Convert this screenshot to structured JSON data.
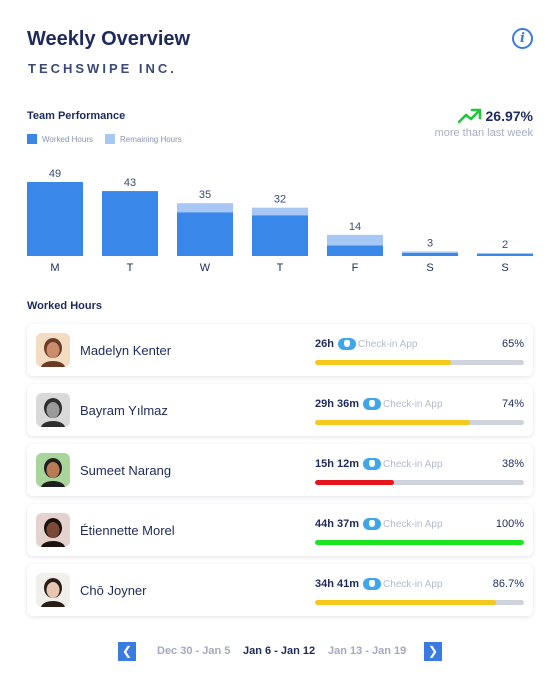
{
  "header": {
    "title": "Weekly Overview",
    "company": "TECHSWIPE INC.",
    "info_icon": "info-icon"
  },
  "team_performance": {
    "title": "Team Performance",
    "legend": {
      "worked": "Worked Hours",
      "remaining": "Remaining Hours"
    },
    "trend": {
      "value": "26.97%",
      "caption": "more than last week",
      "color": "#1ec63c"
    },
    "colors": {
      "worked": "#3a87ea",
      "remaining": "#a7c7f5"
    }
  },
  "chart_data": {
    "type": "bar",
    "categories": [
      "M",
      "T",
      "W",
      "T",
      "F",
      "S",
      "S"
    ],
    "series": [
      {
        "name": "Worked Hours",
        "values": [
          49,
          43,
          29,
          27,
          7,
          2,
          1.5
        ]
      },
      {
        "name": "Remaining Hours",
        "values": [
          0,
          0,
          6,
          5,
          7,
          1,
          0.5
        ]
      }
    ],
    "totals": [
      49,
      43,
      35,
      32,
      14,
      3,
      2
    ],
    "stacked": true,
    "ylim": [
      0,
      49
    ],
    "grid": false,
    "legend": "top-left"
  },
  "worked_hours": {
    "title": "Worked Hours",
    "app_icon": "check-in-app-icon",
    "members": [
      {
        "name": "Madelyn Kenter",
        "time": "26h",
        "app": "Check-in App",
        "percent": "65%",
        "progress": 0.65,
        "color": "#f7c81b",
        "avatar_bg": "#f3dcc2",
        "skin": "#c98d6b",
        "hair": "#6b3b26"
      },
      {
        "name": "Bayram Yılmaz",
        "time": "29h 36m",
        "app": "Check-in App",
        "percent": "74%",
        "progress": 0.74,
        "color": "#f7c81b",
        "avatar_bg": "#d9d9d9",
        "skin": "#9a9a9a",
        "hair": "#2e2e2e"
      },
      {
        "name": "Sumeet Narang",
        "time": "15h 12m",
        "app": "Check-in App",
        "percent": "38%",
        "progress": 0.38,
        "color": "#e8141c",
        "avatar_bg": "#a9d59a",
        "skin": "#b97a56",
        "hair": "#1f1f1f"
      },
      {
        "name": "Étiennette Morel",
        "time": "44h 37m",
        "app": "Check-in App",
        "percent": "100%",
        "progress": 1.0,
        "color": "#19e61e",
        "avatar_bg": "#e4d2cf",
        "skin": "#7a4a36",
        "hair": "#1b1210"
      },
      {
        "name": "Chō Joyner",
        "time": "34h 41m",
        "app": "Check-in App",
        "percent": "86.7%",
        "progress": 0.867,
        "color": "#f7c81b",
        "avatar_bg": "#f1efe9",
        "skin": "#e6c6ae",
        "hair": "#2a1d17"
      }
    ]
  },
  "pager": {
    "prev_icon": "chevron-left-icon",
    "next_icon": "chevron-right-icon",
    "prev_label": "Dec 30 - Jan 5",
    "current_label": "Jan 6 - Jan 12",
    "next_label": "Jan 13 - Jan 19"
  }
}
